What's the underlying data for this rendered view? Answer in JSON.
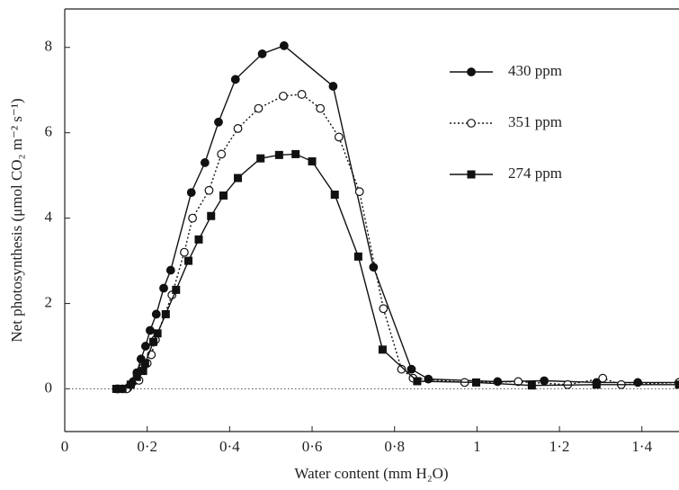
{
  "chart_data": {
    "type": "line",
    "x_label": "Water content (mm H₂O)",
    "y_label": "Net photosynthesis (μmol CO₂ m⁻² s⁻¹)",
    "xlim": [
      0,
      1.49
    ],
    "ylim": [
      -1,
      8.9
    ],
    "xticks": [
      0,
      {
        "value": 0.2,
        "label": "0·2"
      },
      {
        "value": 0.4,
        "label": "0·4"
      },
      {
        "value": 0.6,
        "label": "0·6"
      },
      {
        "value": 0.8,
        "label": "0·8"
      },
      1,
      {
        "value": 1.2,
        "label": "1·2"
      },
      {
        "value": 1.4,
        "label": "1·4"
      }
    ],
    "yticks": [
      0,
      2,
      4,
      6,
      8
    ],
    "reference_line": 0,
    "legend": "upper right",
    "series": [
      {
        "name": "430 ppm",
        "color": "#111111",
        "marker": "circle",
        "linestyle": "solid",
        "x": [
          0.126,
          0.14,
          0.153,
          0.166,
          0.175,
          0.185,
          0.196,
          0.207,
          0.222,
          0.24,
          0.257,
          0.307,
          0.34,
          0.373,
          0.414,
          0.479,
          0.532,
          0.651,
          0.749,
          0.841,
          0.882,
          1.05,
          1.163,
          1.29,
          1.39,
          1.49
        ],
        "values": [
          0,
          0,
          0.02,
          0.17,
          0.38,
          0.7,
          1.0,
          1.37,
          1.75,
          2.36,
          2.78,
          4.6,
          5.3,
          6.25,
          7.25,
          7.85,
          8.04,
          7.09,
          2.85,
          0.46,
          0.23,
          0.17,
          0.19,
          0.15,
          0.15,
          0.15
        ]
      },
      {
        "name": "351 ppm",
        "color": "#111111",
        "marker": "open-circle",
        "linestyle": "dotted",
        "x": [
          0.13,
          0.15,
          0.16,
          0.18,
          0.19,
          0.2,
          0.21,
          0.22,
          0.26,
          0.29,
          0.31,
          0.35,
          0.38,
          0.42,
          0.47,
          0.53,
          0.575,
          0.62,
          0.665,
          0.715,
          0.773,
          0.817,
          0.845,
          0.97,
          1.1,
          1.22,
          1.305,
          1.35,
          1.49
        ],
        "values": [
          0,
          0,
          0.1,
          0.2,
          0.5,
          0.6,
          0.8,
          1.15,
          2.2,
          3.2,
          4.0,
          4.65,
          5.5,
          6.1,
          6.57,
          6.86,
          6.9,
          6.57,
          5.9,
          4.62,
          1.88,
          0.46,
          0.25,
          0.15,
          0.17,
          0.1,
          0.25,
          0.1,
          0.15
        ]
      },
      {
        "name": "274 ppm",
        "color": "#111111",
        "marker": "square",
        "linestyle": "solid",
        "x": [
          0.125,
          0.14,
          0.16,
          0.175,
          0.19,
          0.195,
          0.215,
          0.225,
          0.245,
          0.27,
          0.3,
          0.325,
          0.355,
          0.385,
          0.42,
          0.475,
          0.52,
          0.56,
          0.6,
          0.655,
          0.712,
          0.771,
          0.855,
          0.998,
          1.133,
          1.29,
          1.49
        ],
        "values": [
          0,
          0,
          0.1,
          0.28,
          0.42,
          0.6,
          1.1,
          1.3,
          1.75,
          2.32,
          3.0,
          3.5,
          4.05,
          4.53,
          4.94,
          5.4,
          5.48,
          5.5,
          5.33,
          4.55,
          3.1,
          0.92,
          0.18,
          0.15,
          0.08,
          0.1,
          0.1
        ]
      }
    ]
  }
}
